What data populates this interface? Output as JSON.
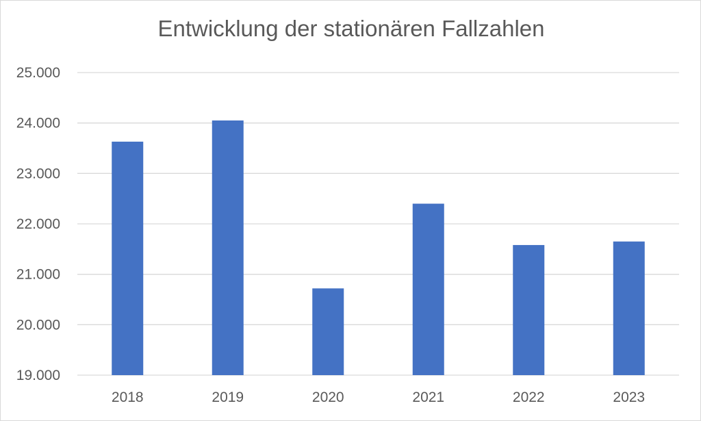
{
  "chart_data": {
    "type": "bar",
    "title": "Entwicklung der stationären Fallzahlen",
    "xlabel": "",
    "ylabel": "",
    "categories": [
      "2018",
      "2019",
      "2020",
      "2021",
      "2022",
      "2023"
    ],
    "values": [
      23630,
      24050,
      20720,
      22400,
      21580,
      21650
    ],
    "ylim": [
      19000,
      25000
    ],
    "yticks": [
      19000,
      20000,
      21000,
      22000,
      23000,
      24000,
      25000
    ],
    "ytick_labels": [
      "19.000",
      "20.000",
      "21.000",
      "22.000",
      "23.000",
      "24.000",
      "25.000"
    ],
    "grid": true,
    "legend": "none",
    "bar_color": "#4472c4",
    "grid_color": "#d9d9d9"
  }
}
